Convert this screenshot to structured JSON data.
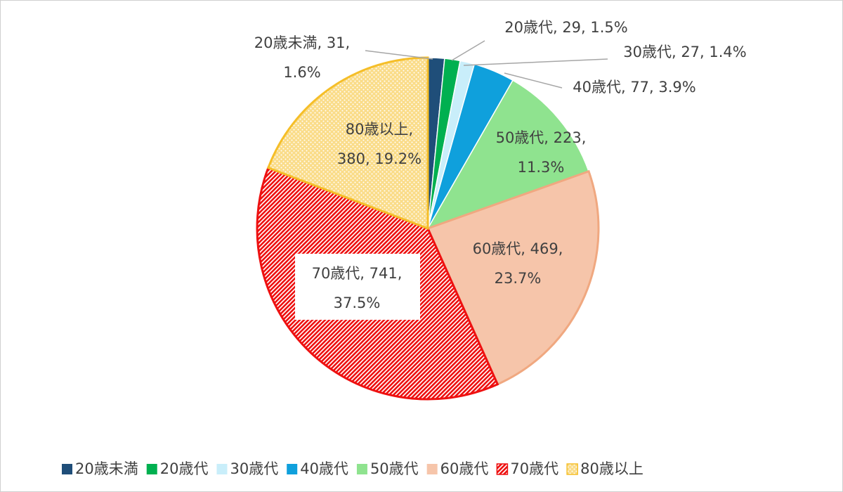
{
  "chart_data": {
    "type": "pie",
    "categories": [
      "20歳未満",
      "20歳代",
      "30歳代",
      "40歳代",
      "50歳代",
      "60歳代",
      "70歳代",
      "80歳以上"
    ],
    "values": [
      31,
      29,
      27,
      77,
      223,
      469,
      741,
      380
    ],
    "value_labels": [
      [
        "20歳未満, 31,",
        "1.6%"
      ],
      [
        "20歳代, 29, 1.5%"
      ],
      [
        "30歳代, 27, 1.4%"
      ],
      [
        "40歳代, 77, 3.9%"
      ],
      [
        "50歳代, 223,",
        "11.3%"
      ],
      [
        "60歳代, 469,",
        "23.7%"
      ],
      [
        "70歳代, 741,",
        "37.5%"
      ],
      [
        "80歳以上,",
        "380, 19.2%"
      ]
    ],
    "colors": [
      "#1f4e79",
      "#00b050",
      "#c9eefa",
      "#0fa0dc",
      "#8fe38f",
      "#f6c5aa",
      "#ee1111",
      "#f5be28"
    ],
    "patterns": [
      "solid",
      "solid",
      "solid",
      "solid",
      "solid",
      "solid",
      "hatch",
      "dots"
    ],
    "legend": "bottom"
  }
}
